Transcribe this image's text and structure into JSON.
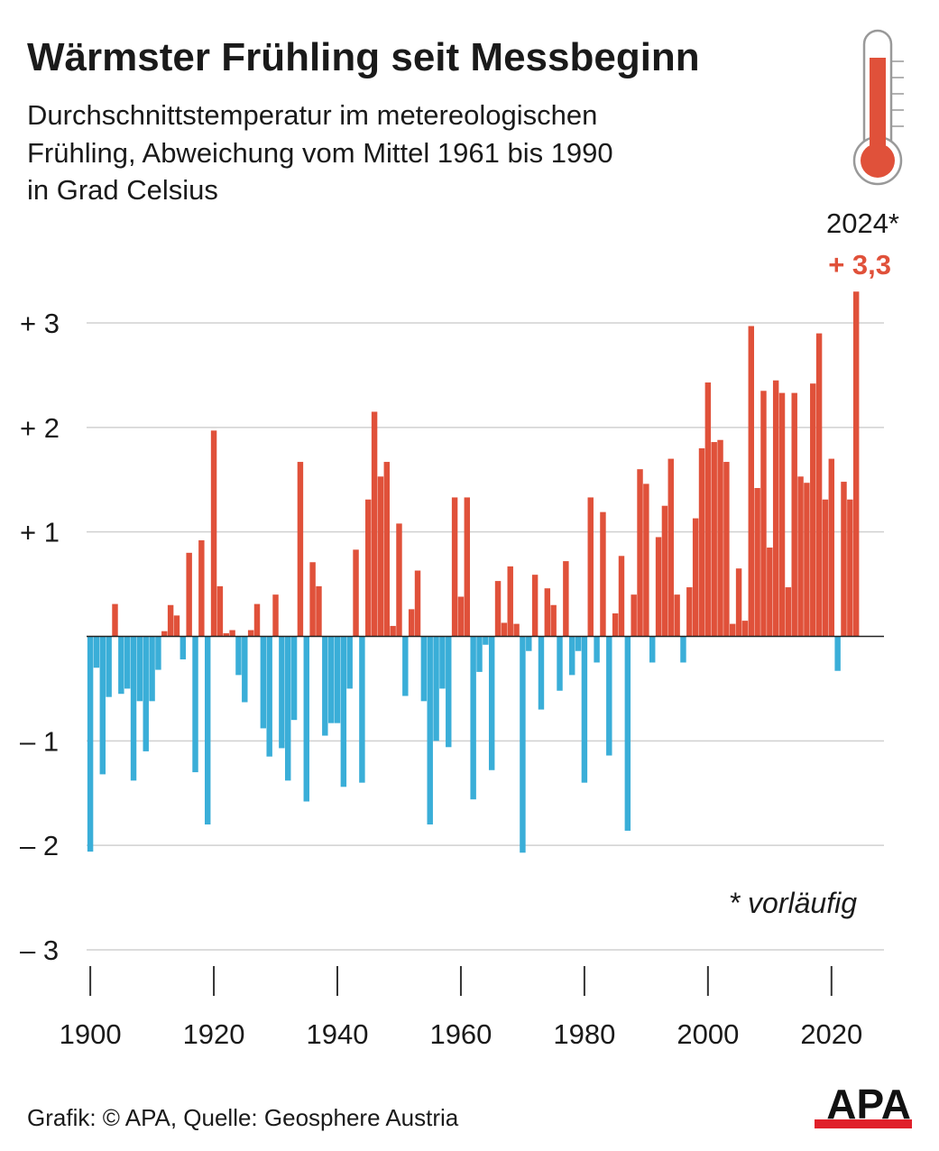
{
  "chart_data": {
    "type": "bar",
    "title": "Wärmster Frühling seit Messbeginn",
    "subtitle": [
      "Durchschnittstemperatur im metereologischen",
      "Frühling, Abweichung vom Mittel 1961 bis 1990",
      "in Grad Celsius"
    ],
    "x": [
      1900,
      1901,
      1902,
      1903,
      1904,
      1905,
      1906,
      1907,
      1908,
      1909,
      1910,
      1911,
      1912,
      1913,
      1914,
      1915,
      1916,
      1917,
      1918,
      1919,
      1920,
      1921,
      1922,
      1923,
      1924,
      1925,
      1926,
      1927,
      1928,
      1929,
      1930,
      1931,
      1932,
      1933,
      1934,
      1935,
      1936,
      1937,
      1938,
      1939,
      1940,
      1941,
      1942,
      1943,
      1944,
      1945,
      1946,
      1947,
      1948,
      1949,
      1950,
      1951,
      1952,
      1953,
      1954,
      1955,
      1956,
      1957,
      1958,
      1959,
      1960,
      1961,
      1962,
      1963,
      1964,
      1965,
      1966,
      1967,
      1968,
      1969,
      1970,
      1971,
      1972,
      1973,
      1974,
      1975,
      1976,
      1977,
      1978,
      1979,
      1980,
      1981,
      1982,
      1983,
      1984,
      1985,
      1986,
      1987,
      1988,
      1989,
      1990,
      1991,
      1992,
      1993,
      1994,
      1995,
      1996,
      1997,
      1998,
      1999,
      2000,
      2001,
      2002,
      2003,
      2004,
      2005,
      2006,
      2007,
      2008,
      2009,
      2010,
      2011,
      2012,
      2013,
      2014,
      2015,
      2016,
      2017,
      2018,
      2019,
      2020,
      2021,
      2022,
      2023,
      2024
    ],
    "values": [
      -2.06,
      -0.3,
      -1.32,
      -0.58,
      0.31,
      -0.55,
      -0.5,
      -1.38,
      -0.62,
      -1.1,
      -0.62,
      -0.32,
      0.05,
      0.3,
      0.2,
      -0.22,
      0.8,
      -1.3,
      0.92,
      -1.8,
      1.97,
      0.48,
      0.03,
      0.06,
      -0.37,
      -0.63,
      0.06,
      0.31,
      -0.88,
      -1.15,
      0.4,
      -1.07,
      -1.38,
      -0.8,
      1.67,
      -1.58,
      0.71,
      0.48,
      -0.95,
      -0.83,
      -0.83,
      -1.44,
      -0.5,
      0.83,
      -1.4,
      1.31,
      2.15,
      1.53,
      1.67,
      0.1,
      1.08,
      -0.57,
      0.26,
      0.63,
      -0.62,
      -1.8,
      -1.0,
      -0.5,
      -1.06,
      1.33,
      0.38,
      1.33,
      -1.56,
      -0.34,
      -0.08,
      -1.28,
      0.53,
      0.13,
      0.67,
      0.12,
      -2.07,
      -0.14,
      0.59,
      -0.7,
      0.46,
      0.3,
      -0.52,
      0.72,
      -0.37,
      -0.14,
      -1.4,
      1.33,
      -0.25,
      1.19,
      -1.14,
      0.22,
      0.77,
      -1.86,
      0.4,
      1.6,
      1.46,
      -0.25,
      0.95,
      1.25,
      1.7,
      0.4,
      -0.25,
      0.47,
      1.13,
      1.8,
      2.43,
      1.86,
      1.88,
      1.67,
      0.12,
      0.65,
      0.15,
      2.97,
      1.42,
      2.35,
      0.85,
      2.45,
      2.33,
      0.47,
      2.33,
      1.53,
      1.47,
      2.42,
      2.9,
      1.31,
      1.7,
      -0.33,
      1.48,
      1.31,
      3.3
    ],
    "colors": {
      "positive": "#e0513a",
      "negative": "#3aaed8"
    },
    "xlim": [
      1899.4,
      2028.5
    ],
    "xticks": [
      1900,
      1920,
      1940,
      1960,
      1980,
      2000,
      2020
    ],
    "ylim": [
      -3,
      3
    ],
    "yticks": [
      {
        "value": 3,
        "label": "+ 3"
      },
      {
        "value": 2,
        "label": "+ 2"
      },
      {
        "value": 1,
        "label": "+ 1"
      },
      {
        "value": -1,
        "label": "– 1"
      },
      {
        "value": -2,
        "label": "– 2"
      },
      {
        "value": -3,
        "label": "– 3"
      }
    ],
    "grid": true,
    "highlight": {
      "label": "2024*",
      "value_label": "+ 3,3"
    },
    "footnote": "* vorläufig",
    "source": "Grafik: © APA, Quelle: Geosphere Austria",
    "logo": "APA"
  }
}
